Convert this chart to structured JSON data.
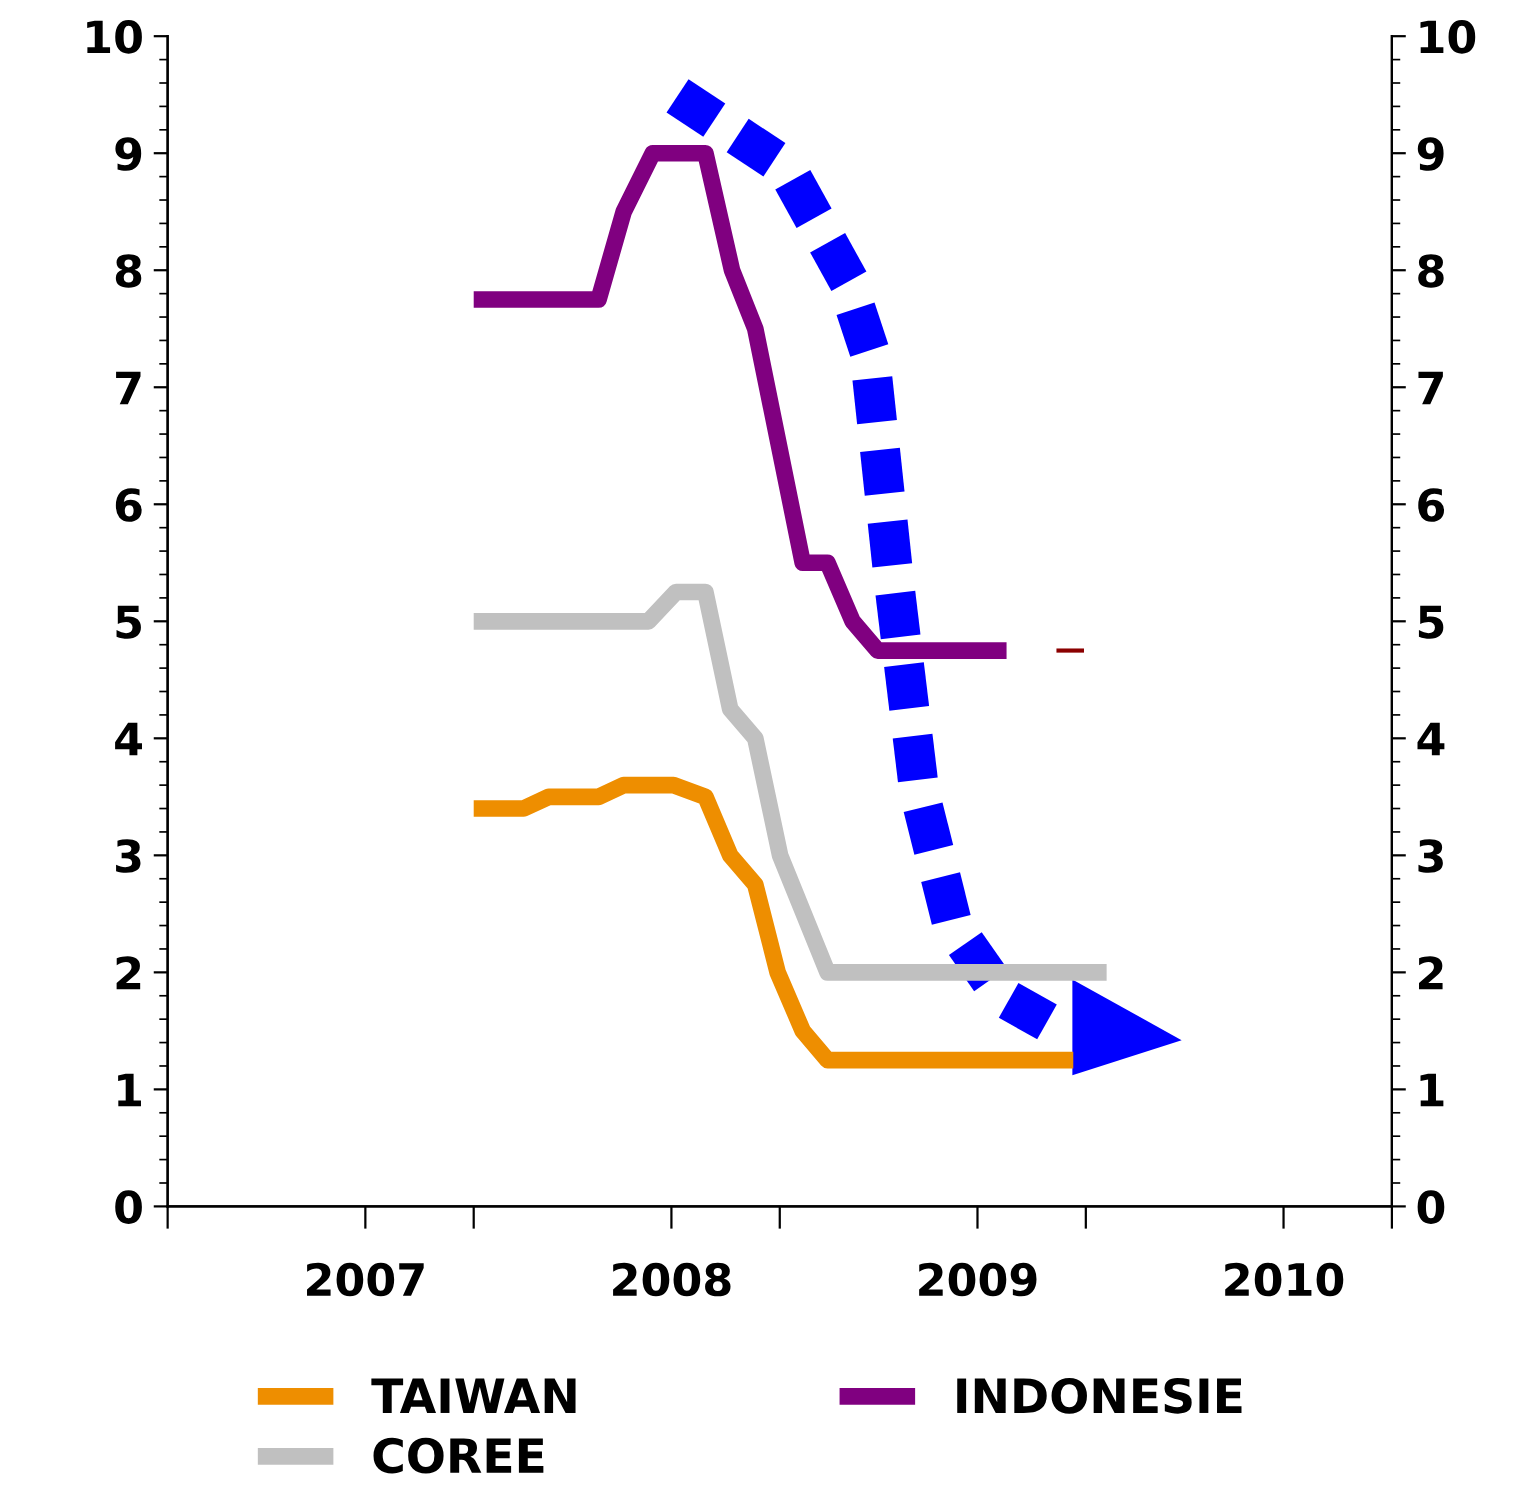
{
  "chart_data": {
    "type": "line",
    "xlim": [
      2006.354,
      2010.354
    ],
    "xticks": [
      {
        "value": 2006.354,
        "label": null
      },
      {
        "value": 2007.354,
        "label": null
      },
      {
        "value": 2008.354,
        "label": null
      },
      {
        "value": 2009.354,
        "label": null
      },
      {
        "value": 2010.354,
        "label": null
      },
      {
        "value": 2007,
        "label": "2007"
      },
      {
        "value": 2008,
        "label": "2008"
      },
      {
        "value": 2009,
        "label": "2009"
      },
      {
        "value": 2010,
        "label": "2010"
      }
    ],
    "ylim": [
      0,
      10
    ],
    "yticks": [
      0,
      1,
      2,
      3,
      4,
      5,
      6,
      7,
      8,
      9,
      10
    ],
    "y2lim": [
      0,
      10
    ],
    "y2ticks": [
      0,
      1,
      2,
      3,
      4,
      5,
      6,
      7,
      8,
      9,
      10
    ],
    "grid": false,
    "legend": "bottom",
    "marker": "none",
    "line_style": "solid",
    "series": [
      {
        "name": "TAIWAN",
        "color": "#ee8e00",
        "x": [
          2007.354,
          2007.517,
          2007.599,
          2007.762,
          2007.844,
          2008.007,
          2008.111,
          2008.192,
          2008.274,
          2008.347,
          2008.429,
          2008.51,
          2009.313
        ],
        "values": [
          3.4,
          3.4,
          3.5,
          3.5,
          3.6,
          3.6,
          3.5,
          3.0,
          2.75,
          2.0,
          1.5,
          1.25,
          1.25
        ]
      },
      {
        "name": "COREE",
        "color": "#c0c0c0",
        "x": [
          2007.354,
          2007.925,
          2008.015,
          2008.111,
          2008.192,
          2008.274,
          2008.355,
          2008.51,
          2009.422
        ],
        "values": [
          5.0,
          5.0,
          5.25,
          5.25,
          4.25,
          4.0,
          3.0,
          2.0,
          2.0
        ]
      },
      {
        "name": "INDONESIE",
        "color": "#800080",
        "x": [
          2007.354,
          2007.762,
          2007.844,
          2007.939,
          2008.111,
          2008.198,
          2008.274,
          2008.429,
          2008.51,
          2008.592,
          2008.674,
          2009.095
        ],
        "values": [
          7.75,
          7.75,
          8.5,
          9.0,
          9.0,
          8.0,
          7.5,
          5.5,
          5.5,
          5.0,
          4.75,
          4.75
        ]
      },
      {
        "color": "#8b0000",
        "x": [
          2009.258,
          2009.348
        ],
        "values": [
          4.75,
          4.75
        ]
      }
    ]
  }
}
